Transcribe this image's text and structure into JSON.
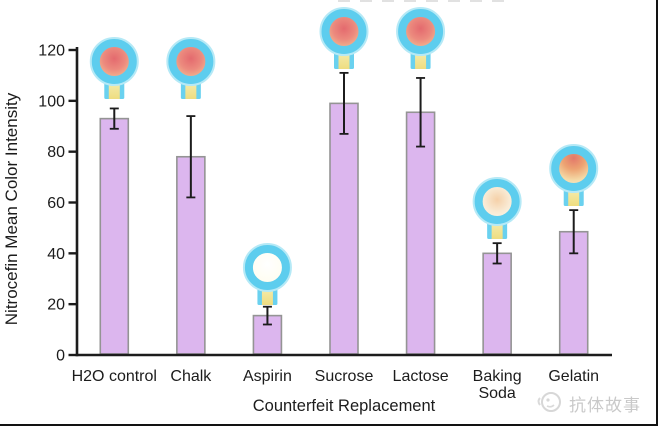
{
  "watermark": {
    "text": "抗体故事",
    "color": "#c9c9c9"
  },
  "chart_data": {
    "type": "bar",
    "title": "",
    "xlabel": "Counterfeit Replacement",
    "ylabel": "Nitrocefin Mean Color Intensity",
    "categories": [
      "H2O control",
      "Chalk",
      "Aspirin",
      "Sucrose",
      "Lactose",
      "Baking\nSoda",
      "Gelatin"
    ],
    "values": [
      93,
      78,
      15.5,
      99,
      95.5,
      40,
      48.5
    ],
    "errors": [
      4,
      16,
      3.5,
      12,
      13.5,
      4,
      8.5
    ],
    "ylim": [
      0,
      120
    ],
    "yticks": [
      0,
      20,
      40,
      60,
      80,
      100,
      120
    ],
    "grid": false,
    "legend_position": "none",
    "bar_color": "#dcb6ee",
    "bar_border_color": "#949494",
    "error_color": "#1c1c1c",
    "bulb_ring_color": "#5dcdee",
    "bulb_appearance": [
      "red",
      "red",
      "white",
      "red",
      "red",
      "pale",
      "red-top"
    ]
  }
}
